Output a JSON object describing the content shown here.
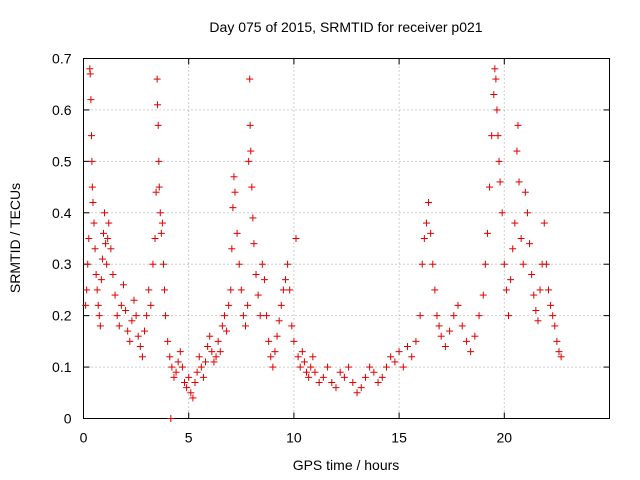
{
  "chart_data": {
    "type": "scatter",
    "title": "Day 075 of 2015, SRMTID for receiver p021",
    "xlabel": "GPS time / hours",
    "ylabel": "SRMTID / TECUs",
    "xlim": [
      0,
      25
    ],
    "ylim": [
      0,
      0.7
    ],
    "xticks": [
      "0",
      "5",
      "10",
      "15",
      "20"
    ],
    "yticks": [
      "0",
      "0.1",
      "0.2",
      "0.3",
      "0.4",
      "0.5",
      "0.6",
      "0.7"
    ],
    "grid": true,
    "marker": "+",
    "color": "#e00000",
    "series": [
      {
        "name": "p021",
        "points": [
          [
            0.1,
            0.22
          ],
          [
            0.15,
            0.25
          ],
          [
            0.2,
            0.3
          ],
          [
            0.25,
            0.35
          ],
          [
            0.3,
            0.68
          ],
          [
            0.32,
            0.67
          ],
          [
            0.35,
            0.62
          ],
          [
            0.38,
            0.55
          ],
          [
            0.4,
            0.5
          ],
          [
            0.42,
            0.45
          ],
          [
            0.45,
            0.42
          ],
          [
            0.5,
            0.38
          ],
          [
            0.55,
            0.33
          ],
          [
            0.6,
            0.28
          ],
          [
            0.65,
            0.25
          ],
          [
            0.7,
            0.22
          ],
          [
            0.75,
            0.2
          ],
          [
            0.8,
            0.18
          ],
          [
            0.85,
            0.27
          ],
          [
            0.9,
            0.31
          ],
          [
            0.95,
            0.36
          ],
          [
            1.0,
            0.4
          ],
          [
            1.05,
            0.34
          ],
          [
            1.1,
            0.3
          ],
          [
            1.15,
            0.35
          ],
          [
            1.2,
            0.38
          ],
          [
            1.3,
            0.33
          ],
          [
            1.4,
            0.28
          ],
          [
            1.5,
            0.24
          ],
          [
            1.6,
            0.2
          ],
          [
            1.7,
            0.18
          ],
          [
            1.8,
            0.22
          ],
          [
            1.9,
            0.26
          ],
          [
            2.0,
            0.21
          ],
          [
            2.1,
            0.17
          ],
          [
            2.2,
            0.15
          ],
          [
            2.3,
            0.19
          ],
          [
            2.4,
            0.23
          ],
          [
            2.5,
            0.2
          ],
          [
            2.6,
            0.16
          ],
          [
            2.7,
            0.14
          ],
          [
            2.8,
            0.12
          ],
          [
            2.9,
            0.17
          ],
          [
            3.0,
            0.2
          ],
          [
            3.1,
            0.25
          ],
          [
            3.2,
            0.22
          ],
          [
            3.3,
            0.3
          ],
          [
            3.4,
            0.35
          ],
          [
            3.45,
            0.44
          ],
          [
            3.5,
            0.66
          ],
          [
            3.52,
            0.61
          ],
          [
            3.55,
            0.57
          ],
          [
            3.58,
            0.5
          ],
          [
            3.6,
            0.45
          ],
          [
            3.65,
            0.4
          ],
          [
            3.7,
            0.36
          ],
          [
            3.75,
            0.38
          ],
          [
            3.8,
            0.3
          ],
          [
            3.85,
            0.25
          ],
          [
            3.9,
            0.2
          ],
          [
            4.0,
            0.15
          ],
          [
            4.1,
            0.12
          ],
          [
            4.15,
            0.0
          ],
          [
            4.2,
            0.1
          ],
          [
            4.3,
            0.08
          ],
          [
            4.4,
            0.09
          ],
          [
            4.5,
            0.11
          ],
          [
            4.6,
            0.13
          ],
          [
            4.7,
            0.1
          ],
          [
            4.8,
            0.07
          ],
          [
            4.9,
            0.06
          ],
          [
            5.0,
            0.08
          ],
          [
            5.1,
            0.05
          ],
          [
            5.2,
            0.04
          ],
          [
            5.3,
            0.07
          ],
          [
            5.4,
            0.09
          ],
          [
            5.5,
            0.12
          ],
          [
            5.6,
            0.1
          ],
          [
            5.7,
            0.08
          ],
          [
            5.8,
            0.11
          ],
          [
            5.9,
            0.14
          ],
          [
            6.0,
            0.16
          ],
          [
            6.1,
            0.13
          ],
          [
            6.2,
            0.11
          ],
          [
            6.3,
            0.12
          ],
          [
            6.4,
            0.15
          ],
          [
            6.5,
            0.13
          ],
          [
            6.6,
            0.18
          ],
          [
            6.7,
            0.2
          ],
          [
            6.8,
            0.17
          ],
          [
            6.9,
            0.22
          ],
          [
            7.0,
            0.25
          ],
          [
            7.05,
            0.33
          ],
          [
            7.1,
            0.41
          ],
          [
            7.15,
            0.47
          ],
          [
            7.2,
            0.44
          ],
          [
            7.3,
            0.36
          ],
          [
            7.4,
            0.3
          ],
          [
            7.5,
            0.25
          ],
          [
            7.6,
            0.2
          ],
          [
            7.7,
            0.18
          ],
          [
            7.8,
            0.22
          ],
          [
            7.85,
            0.5
          ],
          [
            7.9,
            0.66
          ],
          [
            7.92,
            0.57
          ],
          [
            7.95,
            0.52
          ],
          [
            8.0,
            0.45
          ],
          [
            8.05,
            0.39
          ],
          [
            8.1,
            0.34
          ],
          [
            8.2,
            0.28
          ],
          [
            8.3,
            0.24
          ],
          [
            8.4,
            0.2
          ],
          [
            8.5,
            0.3
          ],
          [
            8.6,
            0.27
          ],
          [
            8.7,
            0.2
          ],
          [
            8.8,
            0.15
          ],
          [
            8.9,
            0.12
          ],
          [
            9.0,
            0.1
          ],
          [
            9.1,
            0.13
          ],
          [
            9.2,
            0.16
          ],
          [
            9.3,
            0.19
          ],
          [
            9.4,
            0.22
          ],
          [
            9.5,
            0.25
          ],
          [
            9.6,
            0.27
          ],
          [
            9.7,
            0.3
          ],
          [
            9.8,
            0.25
          ],
          [
            9.9,
            0.18
          ],
          [
            10.0,
            0.15
          ],
          [
            10.1,
            0.35
          ],
          [
            10.2,
            0.12
          ],
          [
            10.3,
            0.1
          ],
          [
            10.4,
            0.13
          ],
          [
            10.5,
            0.11
          ],
          [
            10.6,
            0.09
          ],
          [
            10.7,
            0.08
          ],
          [
            10.8,
            0.1
          ],
          [
            10.9,
            0.12
          ],
          [
            11.0,
            0.09
          ],
          [
            11.2,
            0.07
          ],
          [
            11.4,
            0.08
          ],
          [
            11.6,
            0.1
          ],
          [
            11.8,
            0.07
          ],
          [
            12.0,
            0.06
          ],
          [
            12.2,
            0.09
          ],
          [
            12.4,
            0.08
          ],
          [
            12.6,
            0.1
          ],
          [
            12.8,
            0.07
          ],
          [
            13.0,
            0.05
          ],
          [
            13.2,
            0.06
          ],
          [
            13.4,
            0.08
          ],
          [
            13.6,
            0.1
          ],
          [
            13.8,
            0.09
          ],
          [
            14.0,
            0.07
          ],
          [
            14.2,
            0.08
          ],
          [
            14.4,
            0.1
          ],
          [
            14.6,
            0.12
          ],
          [
            14.8,
            0.11
          ],
          [
            15.0,
            0.13
          ],
          [
            15.2,
            0.1
          ],
          [
            15.4,
            0.14
          ],
          [
            15.6,
            0.12
          ],
          [
            15.8,
            0.15
          ],
          [
            16.0,
            0.2
          ],
          [
            16.1,
            0.3
          ],
          [
            16.2,
            0.35
          ],
          [
            16.3,
            0.38
          ],
          [
            16.4,
            0.42
          ],
          [
            16.5,
            0.36
          ],
          [
            16.6,
            0.3
          ],
          [
            16.7,
            0.25
          ],
          [
            16.8,
            0.2
          ],
          [
            16.9,
            0.18
          ],
          [
            17.0,
            0.16
          ],
          [
            17.2,
            0.14
          ],
          [
            17.4,
            0.17
          ],
          [
            17.6,
            0.2
          ],
          [
            17.8,
            0.22
          ],
          [
            18.0,
            0.18
          ],
          [
            18.2,
            0.15
          ],
          [
            18.4,
            0.13
          ],
          [
            18.6,
            0.16
          ],
          [
            18.8,
            0.2
          ],
          [
            19.0,
            0.24
          ],
          [
            19.1,
            0.3
          ],
          [
            19.2,
            0.36
          ],
          [
            19.3,
            0.45
          ],
          [
            19.4,
            0.55
          ],
          [
            19.5,
            0.63
          ],
          [
            19.55,
            0.68
          ],
          [
            19.6,
            0.66
          ],
          [
            19.65,
            0.6
          ],
          [
            19.7,
            0.55
          ],
          [
            19.75,
            0.5
          ],
          [
            19.8,
            0.46
          ],
          [
            19.9,
            0.4
          ],
          [
            20.0,
            0.3
          ],
          [
            20.1,
            0.25
          ],
          [
            20.2,
            0.2
          ],
          [
            20.3,
            0.27
          ],
          [
            20.4,
            0.33
          ],
          [
            20.5,
            0.38
          ],
          [
            20.6,
            0.52
          ],
          [
            20.65,
            0.57
          ],
          [
            20.7,
            0.46
          ],
          [
            20.8,
            0.35
          ],
          [
            20.9,
            0.3
          ],
          [
            21.0,
            0.44
          ],
          [
            21.1,
            0.4
          ],
          [
            21.2,
            0.34
          ],
          [
            21.3,
            0.28
          ],
          [
            21.4,
            0.24
          ],
          [
            21.5,
            0.21
          ],
          [
            21.6,
            0.19
          ],
          [
            21.7,
            0.25
          ],
          [
            21.8,
            0.3
          ],
          [
            21.9,
            0.38
          ],
          [
            22.0,
            0.3
          ],
          [
            22.1,
            0.25
          ],
          [
            22.2,
            0.22
          ],
          [
            22.3,
            0.2
          ],
          [
            22.4,
            0.18
          ],
          [
            22.5,
            0.15
          ],
          [
            22.6,
            0.13
          ],
          [
            22.7,
            0.12
          ]
        ]
      }
    ]
  }
}
